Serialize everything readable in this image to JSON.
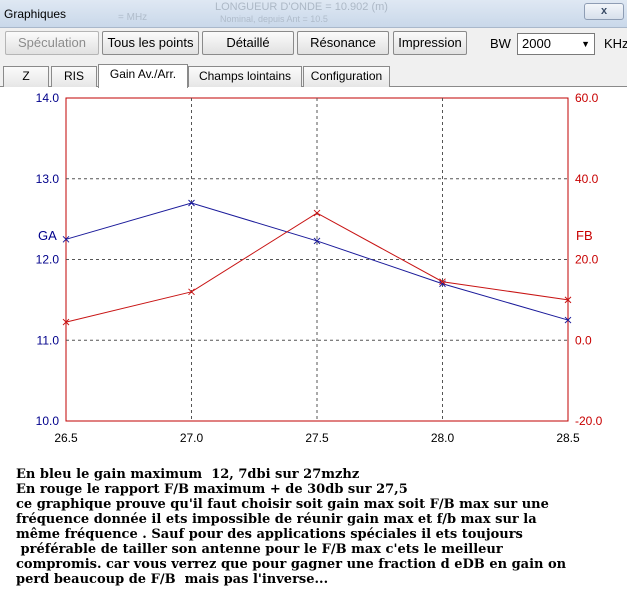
{
  "window": {
    "title": "Graphiques",
    "close_label": "x",
    "ghost_text_top": "LONGUEUR D'ONDE = 10.902 (m)",
    "ghost_text_mid": "Nominal, depuis Ant = 10.5",
    "ghost_text_left": "= MHz"
  },
  "toolbar": {
    "buttons": [
      "Spéculation",
      "Tous les points",
      "Détaillé",
      "Résonance",
      "Impression"
    ],
    "bw_label": "BW",
    "bw_value": "2000",
    "bw_unit": "KHz"
  },
  "tabs": [
    "Z",
    "RIS",
    "Gain Av./Arr.",
    "Champs lointains",
    "Configuration"
  ],
  "active_tab": "Gain Av./Arr.",
  "icons": {
    "close": "close-icon",
    "dropdown": "chevron-down-icon"
  },
  "colors": {
    "gain_series": "#1a1a9a",
    "fb_series": "#c81414",
    "axis_frame": "#c00000",
    "left_axis_text": "#00008b",
    "right_axis_text": "#c80000"
  },
  "chart_data": {
    "type": "line",
    "x_ticks": [
      "26.5",
      "27.0",
      "27.5",
      "28.0",
      "28.5"
    ],
    "xlim": [
      26.5,
      28.5
    ],
    "left_axis": {
      "label": "GA",
      "ticks": [
        "14.0",
        "13.0",
        "12.0",
        "11.0",
        "10.0"
      ],
      "ylim": [
        10,
        14
      ]
    },
    "right_axis": {
      "label": "FB",
      "ticks": [
        "60.0",
        "40.0",
        "20.0",
        "0.0",
        "-20.0"
      ],
      "ylim": [
        -20,
        60
      ]
    },
    "grid": true,
    "series": [
      {
        "axis": "left",
        "color": "#1a1a9a",
        "x": [
          26.5,
          27.0,
          27.5,
          28.0,
          28.5
        ],
        "y": [
          12.25,
          12.7,
          12.23,
          11.7,
          11.25
        ]
      },
      {
        "axis": "right",
        "color": "#c81414",
        "x": [
          26.5,
          27.0,
          27.5,
          28.0,
          28.5
        ],
        "y": [
          4.5,
          12,
          31.5,
          14.5,
          10
        ]
      }
    ]
  },
  "caption": [
    "En bleu le gain maximum  12, 7dbi sur 27mzhz",
    "En rouge le rapport F/B maximum + de 30db sur 27,5",
    "ce graphique prouve qu'il faut choisir soit gain max soit F/B max sur une",
    "fréquence donnée il ets impossible de réunir gain max et f/b max sur la",
    "même fréquence . Sauf pour des applications spéciales il ets toujours",
    " préférable de tailler son antenne pour le F/B max c'ets le meilleur",
    "compromis. car vous verrez que pour gagner une fraction d eDB en gain on",
    "perd beaucoup de F/B  mais pas l'inverse..."
  ]
}
